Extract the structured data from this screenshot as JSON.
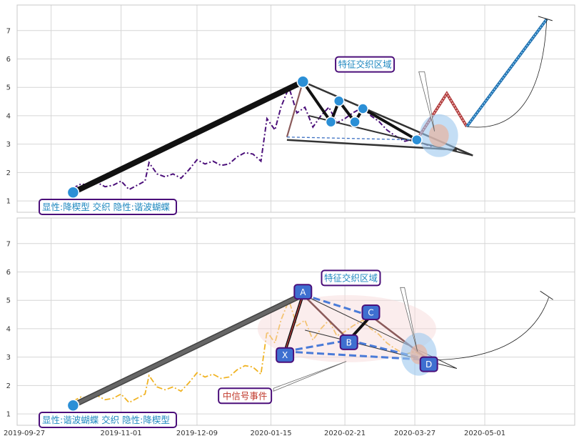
{
  "chart_data": [
    {
      "type": "line",
      "panel": "top",
      "ylim": [
        0.6,
        7.9
      ],
      "yticks": [
        1,
        2,
        3,
        4,
        5,
        6,
        7
      ],
      "xlim": [
        "2019-09-10",
        "2020-06-15"
      ],
      "price_color": "#4b0f7a",
      "price_dates": [
        "2019-10-08",
        "2019-10-12",
        "2019-10-16",
        "2019-10-20",
        "2019-10-24",
        "2019-10-28",
        "2019-11-01",
        "2019-11-05",
        "2019-11-09",
        "2019-11-13",
        "2019-11-15",
        "2019-11-19",
        "2019-11-23",
        "2019-11-27",
        "2019-12-01",
        "2019-12-05",
        "2019-12-09",
        "2019-12-13",
        "2019-12-17",
        "2019-12-21",
        "2019-12-25",
        "2019-12-29",
        "2020-01-02",
        "2020-01-06",
        "2020-01-10",
        "2020-01-13",
        "2020-01-17",
        "2020-01-20",
        "2020-01-24",
        "2020-01-28",
        "2020-02-01",
        "2020-02-05",
        "2020-02-09",
        "2020-02-13",
        "2020-02-17",
        "2020-02-21",
        "2020-02-25",
        "2020-03-01",
        "2020-03-05",
        "2020-03-09",
        "2020-03-13",
        "2020-03-17",
        "2020-03-22",
        "2020-03-27",
        "2020-04-01",
        "2020-04-05"
      ],
      "price_values": [
        1.45,
        1.6,
        1.55,
        1.65,
        1.5,
        1.55,
        1.7,
        1.4,
        1.55,
        1.7,
        2.35,
        1.95,
        1.85,
        1.95,
        1.8,
        2.1,
        2.45,
        2.3,
        2.4,
        2.25,
        2.3,
        2.55,
        2.7,
        2.65,
        2.4,
        3.9,
        3.5,
        4.3,
        5.0,
        4.1,
        4.3,
        3.6,
        4.0,
        4.3,
        3.75,
        3.9,
        4.1,
        4.3,
        4.0,
        3.8,
        3.5,
        3.3,
        3.1,
        3.2,
        3.0,
        2.9
      ],
      "xabcd": [
        {
          "date": "2019-10-08",
          "value": 1.3
        },
        {
          "date": "2020-01-31",
          "value": 5.2
        },
        {
          "date": "2020-02-14",
          "value": 3.78
        },
        {
          "date": "2020-02-18",
          "value": 4.52
        },
        {
          "date": "2020-02-26",
          "value": 3.78
        },
        {
          "date": "2020-03-01",
          "value": 4.25
        },
        {
          "date": "2020-03-28",
          "value": 3.15
        }
      ],
      "projection": [
        {
          "date": "2020-03-28",
          "value": 3.15
        },
        {
          "date": "2020-04-12",
          "value": 4.78
        },
        {
          "date": "2020-04-22",
          "value": 3.62
        },
        {
          "date": "2020-06-01",
          "value": 7.4
        }
      ],
      "text": {
        "pattern_label": "显性:降楔型 交织 隐性:谐波蝴蝶",
        "zone_label": "特征交织区域"
      }
    },
    {
      "type": "line",
      "panel": "bottom",
      "ylim": [
        0.6,
        7.9
      ],
      "yticks": [
        1,
        2,
        3,
        4,
        5,
        6,
        7
      ],
      "xlim": [
        "2019-09-10",
        "2020-06-15"
      ],
      "xticks": [
        "2019-09-27",
        "2019-11-01",
        "2019-12-09",
        "2020-01-15",
        "2020-02-21",
        "2020-03-27",
        "2020-05-01"
      ],
      "price_color": "#f0b323",
      "price_dates": [
        "2019-10-08",
        "2019-10-12",
        "2019-10-16",
        "2019-10-20",
        "2019-10-24",
        "2019-10-28",
        "2019-11-01",
        "2019-11-05",
        "2019-11-09",
        "2019-11-13",
        "2019-11-15",
        "2019-11-19",
        "2019-11-23",
        "2019-11-27",
        "2019-12-01",
        "2019-12-05",
        "2019-12-09",
        "2019-12-13",
        "2019-12-17",
        "2019-12-21",
        "2019-12-25",
        "2019-12-29",
        "2020-01-02",
        "2020-01-06",
        "2020-01-10",
        "2020-01-13",
        "2020-01-17",
        "2020-01-20",
        "2020-01-24",
        "2020-01-28",
        "2020-02-01",
        "2020-02-05",
        "2020-02-09",
        "2020-02-13",
        "2020-02-17",
        "2020-02-21",
        "2020-02-25",
        "2020-03-01",
        "2020-03-05",
        "2020-03-09",
        "2020-03-13",
        "2020-03-17",
        "2020-03-22",
        "2020-03-27",
        "2020-04-01",
        "2020-04-05"
      ],
      "price_values": [
        1.45,
        1.6,
        1.55,
        1.65,
        1.5,
        1.55,
        1.7,
        1.4,
        1.55,
        1.7,
        2.35,
        1.95,
        1.85,
        1.95,
        1.8,
        2.1,
        2.45,
        2.3,
        2.4,
        2.25,
        2.3,
        2.55,
        2.7,
        2.65,
        2.4,
        3.9,
        3.5,
        4.3,
        5.0,
        4.1,
        4.3,
        3.6,
        4.0,
        4.3,
        3.75,
        3.9,
        4.1,
        4.3,
        4.0,
        3.8,
        3.5,
        3.3,
        3.1,
        3.2,
        3.0,
        2.9
      ],
      "points": [
        {
          "label": "X",
          "date": "2020-01-22",
          "value": 3.2
        },
        {
          "label": "A",
          "date": "2020-01-31",
          "value": 5.2
        },
        {
          "label": "B",
          "date": "2020-02-23",
          "value": 3.6
        },
        {
          "label": "C",
          "date": "2020-03-05",
          "value": 4.45
        },
        {
          "label": "D",
          "date": "2020-04-03",
          "value": 2.9
        }
      ],
      "trend_start": {
        "date": "2019-10-08",
        "value": 1.3
      },
      "text": {
        "pattern_label": "显性:谐波蝴蝶 交织 隐性:降楔型",
        "zone_label": "特征交织区域",
        "signal_label": "中信号事件"
      }
    }
  ]
}
